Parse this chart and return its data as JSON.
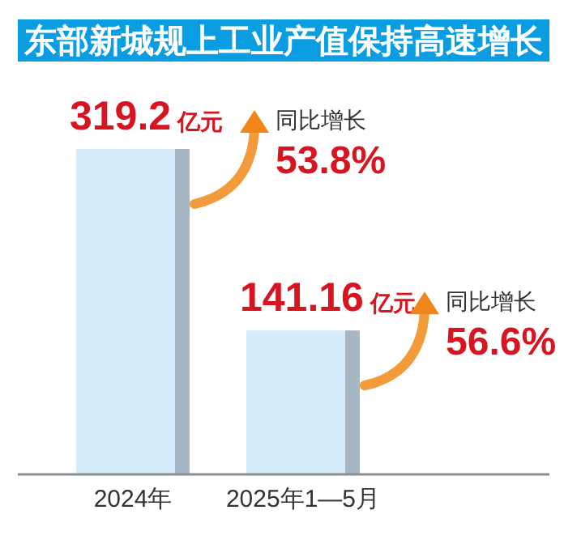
{
  "chart_data": {
    "type": "bar",
    "title": "东部新城规上工业产值保持高速增长",
    "categories": [
      "2024年",
      "2025年1—5月"
    ],
    "values": [
      319.2,
      141.16
    ],
    "value_labels": [
      "319.2亿元",
      "141.16亿元"
    ],
    "color": "#d4ecfb",
    "annotations": [
      "同比增长",
      "53.8%",
      "同比增长",
      "56.6%"
    ]
  }
}
